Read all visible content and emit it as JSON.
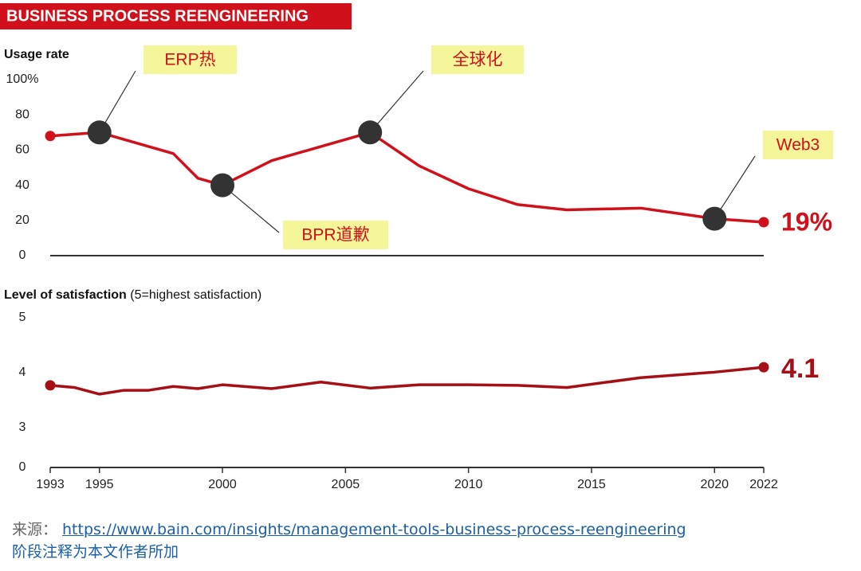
{
  "header": {
    "title": "BUSINESS PROCESS REENGINEERING"
  },
  "chart_data": [
    {
      "type": "line",
      "ylabel": "Usage rate",
      "x": [
        1993,
        1995,
        1998,
        1999,
        2000,
        2002,
        2006,
        2008,
        2010,
        2012,
        2014,
        2017,
        2020,
        2022
      ],
      "series": [
        {
          "color": "#d0101a",
          "values": [
            68,
            70,
            58,
            44,
            40,
            54,
            70,
            51,
            38,
            29,
            26,
            27,
            21,
            19
          ],
          "value_labels": [
            null,
            null,
            null,
            null,
            null,
            null,
            null,
            null,
            null,
            null,
            null,
            null,
            null,
            "19%"
          ]
        }
      ],
      "xlim": [
        1993,
        2022
      ],
      "ylim": [
        0,
        100
      ],
      "yticks": [
        0,
        20,
        40,
        60,
        80,
        {
          "value": 100,
          "label": "100%"
        }
      ],
      "annotations": [
        {
          "text": "ERP热",
          "x": 1995,
          "y": 70
        },
        {
          "text": "BPR道歉",
          "x": 2000,
          "y": 40
        },
        {
          "text": "全球化",
          "x": 2006,
          "y": 70
        },
        {
          "text": "Web3",
          "x": 2020,
          "y": 21
        }
      ]
    },
    {
      "type": "line",
      "ylabel": "Level of satisfaction",
      "ylabel_note": "(5=highest satisfaction)",
      "x": [
        1993,
        1994,
        1995,
        1996,
        1997,
        1998,
        1999,
        2000,
        2002,
        2004,
        2006,
        2008,
        2010,
        2012,
        2014,
        2017,
        2020,
        2022
      ],
      "series": [
        {
          "color": "#a50f15",
          "values": [
            3.77,
            3.73,
            3.61,
            3.68,
            3.68,
            3.75,
            3.71,
            3.78,
            3.71,
            3.83,
            3.72,
            3.78,
            3.78,
            3.77,
            3.73,
            3.91,
            4.01,
            4.1
          ]
        }
      ],
      "xlim": [
        1993,
        2022
      ],
      "ylim": [
        0,
        5
      ],
      "axis_break": [
        0,
        3
      ],
      "yticks": [
        0,
        3,
        4,
        5
      ],
      "xticks": [
        1993,
        1995,
        2000,
        2005,
        2010,
        2015,
        2020,
        2022
      ]
    }
  ],
  "footer": {
    "source_label": "来源：",
    "source_url": "https://www.bain.com/insights/management-tools-business-process-reengineering",
    "note": "阶段注释为本文作者所加"
  }
}
